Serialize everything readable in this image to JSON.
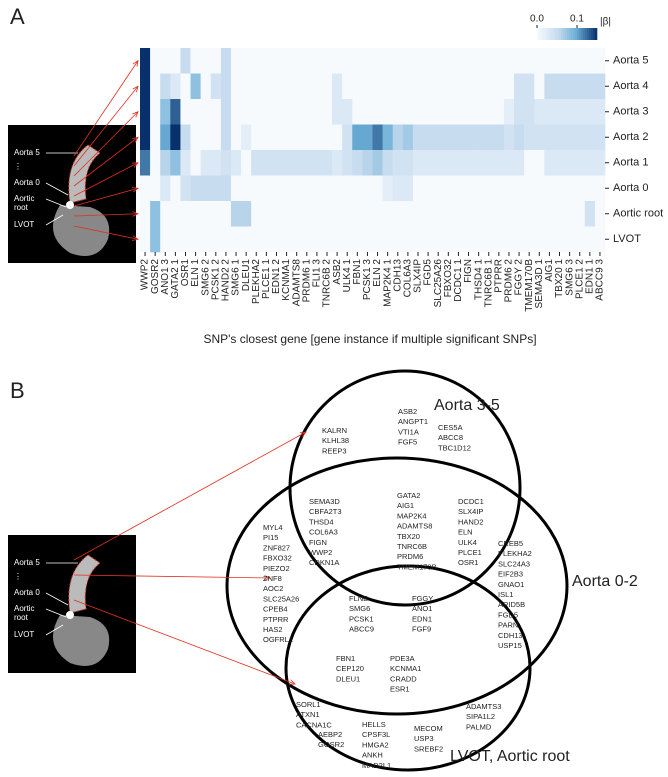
{
  "panel_labels": [
    "A",
    "B"
  ],
  "anatomy_labels": [
    "Aorta 5",
    "⋮",
    "Aorta 0",
    "Aortic",
    "root",
    "LVOT"
  ],
  "chart_data": {
    "type": "heatmap",
    "x_label": "SNP's closest gene [gene instance if multiple significant SNPs]",
    "categories": [
      "WWP2",
      "GOSR2",
      "ANO1 3",
      "GATA2 1",
      "OSR1",
      "ELN 1",
      "SMG6 2",
      "PCSK1 2",
      "HAND2 2",
      "SMG6 1",
      "DLEU1",
      "PLEKHA2",
      "PLCE1 1",
      "EDN1 2",
      "KCNMA1",
      "ADAMTS8",
      "PRDM6 1",
      "FLI1 3",
      "TNRC6B 2",
      "ASB2",
      "ULK4 1",
      "FBN1",
      "PCSK1 3",
      "ELN 2",
      "MAP2K4 1",
      "CDH13",
      "COL6A3",
      "SLX4IP",
      "FGD5",
      "SLC25A26",
      "FBXO32",
      "DCDC1 1",
      "FIGN",
      "THSD4 1",
      "TNRC6B 1",
      "PTPRR",
      "PRDM6 2",
      "FGGY 2",
      "TMEM170B",
      "SEMA3D 1",
      "AIG1",
      "TBX20 1",
      "SMG6 3",
      "PLCE1 2",
      "EDN1 1",
      "ABCC9 3"
    ],
    "rows": [
      "Aorta 5",
      "Aorta 4",
      "Aorta 3",
      "Aorta 2",
      "Aorta 1",
      "Aorta 0",
      "Aortic root",
      "LVOT"
    ],
    "values": [
      [
        0.15,
        0,
        0,
        0,
        0.05,
        0,
        0,
        0,
        0.05,
        0,
        0,
        0,
        0,
        0,
        0,
        0,
        0,
        0,
        0,
        0,
        0,
        0,
        0,
        0,
        0,
        0,
        0,
        0,
        0,
        0,
        0,
        0,
        0,
        0,
        0,
        0,
        0,
        0,
        0,
        0,
        0,
        0,
        0,
        0,
        0,
        0
      ],
      [
        0.15,
        0,
        0.05,
        0.03,
        0,
        0.08,
        0,
        0.04,
        0.05,
        0,
        0,
        0,
        0,
        0,
        0,
        0,
        0,
        0,
        0,
        0.03,
        0,
        0,
        0,
        0,
        0,
        0,
        0,
        0,
        0,
        0,
        0,
        0,
        0,
        0,
        0,
        0,
        0,
        0.04,
        0.04,
        0,
        0.05,
        0.05,
        0.05,
        0.05,
        0.05,
        0.05
      ],
      [
        0.15,
        0,
        0.08,
        0.13,
        0,
        0,
        0,
        0,
        0.05,
        0,
        0,
        0,
        0,
        0,
        0,
        0,
        0,
        0,
        0,
        0.03,
        0.03,
        0,
        0,
        0,
        0,
        0,
        0,
        0,
        0,
        0,
        0,
        0,
        0,
        0,
        0,
        0,
        0.02,
        0.04,
        0.04,
        0.03,
        0.03,
        0.03,
        0.03,
        0.03,
        0.03,
        0.03
      ],
      [
        0.15,
        0,
        0.1,
        0.15,
        0.05,
        0,
        0,
        0,
        0.05,
        0,
        0.02,
        0,
        0,
        0,
        0,
        0,
        0,
        0,
        0,
        0,
        0.04,
        0.1,
        0.1,
        0.12,
        0.09,
        0.06,
        0.07,
        0.05,
        0.05,
        0.05,
        0.05,
        0.05,
        0.05,
        0.05,
        0.05,
        0.05,
        0.04,
        0.05,
        0.04,
        0.04,
        0.04,
        0.04,
        0.04,
        0.04,
        0.04,
        0.04
      ],
      [
        0.12,
        0,
        0.06,
        0.08,
        0.03,
        0,
        0.03,
        0.03,
        0.04,
        0.03,
        0,
        0.04,
        0.04,
        0.04,
        0.04,
        0.04,
        0.04,
        0.04,
        0.04,
        0.03,
        0.04,
        0.05,
        0.06,
        0.07,
        0.05,
        0.04,
        0.04,
        0.03,
        0.03,
        0.03,
        0.03,
        0.03,
        0.03,
        0.03,
        0.03,
        0.03,
        0.03,
        0.03,
        0,
        0,
        0.03,
        0.03,
        0.03,
        0.03,
        0.03,
        0.03
      ],
      [
        0,
        0,
        0.03,
        0,
        0.04,
        0.05,
        0.05,
        0.05,
        0.05,
        0,
        0,
        0,
        0,
        0,
        0,
        0,
        0,
        0,
        0,
        0,
        0,
        0,
        0,
        0,
        0.02,
        0.03,
        0.03,
        0,
        0,
        0,
        0,
        0,
        0,
        0,
        0,
        0,
        0,
        0,
        0,
        0,
        0,
        0,
        0,
        0,
        0,
        0
      ],
      [
        0,
        0.08,
        0,
        0,
        0,
        0,
        0,
        0,
        0,
        0.06,
        0.06,
        0,
        0,
        0,
        0,
        0,
        0,
        0,
        0,
        0,
        0,
        0,
        0,
        0,
        0,
        0,
        0,
        0,
        0,
        0,
        0,
        0,
        0,
        0,
        0,
        0,
        0,
        0,
        0,
        0,
        0,
        0,
        0,
        0,
        0.04,
        0
      ],
      [
        0,
        0.08,
        0,
        0,
        0,
        0,
        0,
        0,
        0,
        0,
        0,
        0,
        0,
        0,
        0,
        0,
        0,
        0,
        0,
        0,
        0,
        0,
        0,
        0,
        0,
        0,
        0,
        0,
        0,
        0,
        0,
        0,
        0,
        0,
        0,
        0,
        0,
        0,
        0,
        0,
        0,
        0,
        0,
        0,
        0,
        0
      ]
    ],
    "clim": [
      0,
      0.15
    ],
    "colorbar_ticks": [
      {
        "value": 0,
        "label": "0.0"
      },
      0.1
    ],
    "colorbar_label": "|β|"
  },
  "venn": {
    "sets": [
      "Aorta 3-5",
      "Aorta 0-2",
      "LVOT, Aortic root"
    ],
    "regions": [
      {
        "genes": [
          "KALRN",
          "KLHL38",
          "REEP3"
        ]
      },
      {
        "genes": [
          "ASB2",
          "ANGPT1",
          "VTI1A",
          "FGF5"
        ]
      },
      {
        "genes": [
          "CES5A",
          "ABCC8",
          "TBC1D12"
        ]
      },
      {
        "genes": [
          "SEMA3D",
          "CBFA2T3",
          "THSD4",
          "COL6A3",
          "FIGN",
          "WWP2",
          "CDKN1A"
        ]
      },
      {
        "genes": [
          "GATA2",
          "AIG1",
          "MAP2K4",
          "ADAMTS8",
          "TBX20",
          "TNRC6B",
          "PRDM6",
          "TMEM170B"
        ]
      },
      {
        "genes": [
          "DCDC1",
          "SLX4IP",
          "HAND2",
          "ELN",
          "ULK4",
          "PLCE1",
          "OSR1"
        ]
      },
      {
        "genes": [
          "MYL4",
          "PI15",
          "ZNF827",
          "FBXO32",
          "PIEZO2",
          "ZNF8",
          "AOC2",
          "SLC25A26",
          "CPEB4",
          "PTPRR",
          "HAS2",
          "OGFRL1"
        ]
      },
      {
        "genes": [
          "CREB5",
          "PLEKHA2",
          "SLC24A3",
          "EIF2B3",
          "GNAO1",
          "ISL1",
          "ARID5B",
          "FGD5",
          "PARN",
          "CDH13",
          "USP15"
        ]
      },
      {
        "genes": [
          "FLNB",
          "SMG6",
          "PCSK1",
          "ABCC9"
        ]
      },
      {
        "genes": [
          "FGGY",
          "ANO1",
          "EDN1",
          "FGF9"
        ]
      },
      {
        "genes": [
          "FBN1",
          "CEP120",
          "DLEU1"
        ]
      },
      {
        "genes": [
          "PDE3A",
          "KCNMA1",
          "CRADD",
          "ESR1"
        ]
      },
      {
        "genes": [
          "SORL1",
          "ATXN1",
          "CACNA1C"
        ]
      },
      {
        "genes": [
          "AEBP2",
          "GOSR2"
        ]
      },
      {
        "genes": [
          "HELLS",
          "CPSF3L",
          "HMGA2",
          "ANKH",
          "MAD2L1"
        ]
      },
      {
        "genes": [
          "MECOM",
          "USP3",
          "SREBF2"
        ]
      },
      {
        "genes": [
          "ADAMTS3",
          "SIPA1L2",
          "PALMD"
        ]
      }
    ]
  }
}
